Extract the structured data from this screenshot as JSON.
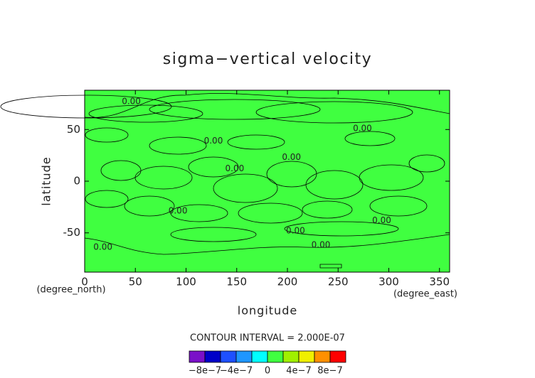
{
  "chart_data": {
    "type": "contour",
    "title": "sigma−vertical velocity",
    "xlabel": "longitude",
    "ylabel": "latitude",
    "xunit": "(degree_east)",
    "yunit": "(degree_north)",
    "xlim": [
      0,
      360
    ],
    "ylim": [
      -88,
      88
    ],
    "xticks": [
      0,
      50,
      100,
      150,
      200,
      250,
      300,
      350
    ],
    "yticks": [
      -50,
      0,
      50
    ],
    "contour_labels": [
      {
        "text": "0.00",
        "lon": 46,
        "lat": 77
      },
      {
        "text": "0.00",
        "lon": 127,
        "lat": 39
      },
      {
        "text": "0.00",
        "lon": 274,
        "lat": 51
      },
      {
        "text": "0.00",
        "lon": 204,
        "lat": 23
      },
      {
        "text": "0.00",
        "lon": 148,
        "lat": 12
      },
      {
        "text": "0.00",
        "lon": 92,
        "lat": -29
      },
      {
        "text": "0.00",
        "lon": 208,
        "lat": -48
      },
      {
        "text": "0.00",
        "lon": 293,
        "lat": -38
      },
      {
        "text": "0.00",
        "lon": 233,
        "lat": -62
      },
      {
        "text": "0.00",
        "lon": 18,
        "lat": -64
      }
    ],
    "colorbar": {
      "note": "CONTOUR INTERVAL = 2.000E-07",
      "levels": [
        -1e-06,
        -8e-07,
        -6e-07,
        -4e-07,
        -2e-07,
        0,
        2e-07,
        4e-07,
        6e-07,
        8e-07,
        1e-06
      ],
      "colors": [
        "#7a10c8",
        "#0000c8",
        "#1e50ff",
        "#1e96ff",
        "#00ffff",
        "#40ff40",
        "#a0f000",
        "#f0f000",
        "#ff9000",
        "#ff0000"
      ],
      "ticks": [
        {
          "value": -8e-07,
          "label": "−8e−7"
        },
        {
          "value": -4e-07,
          "label": "−4e−7"
        },
        {
          "value": 0,
          "label": "0"
        },
        {
          "value": 4e-07,
          "label": "4e−7"
        },
        {
          "value": 8e-07,
          "label": "8e−7"
        }
      ]
    }
  }
}
